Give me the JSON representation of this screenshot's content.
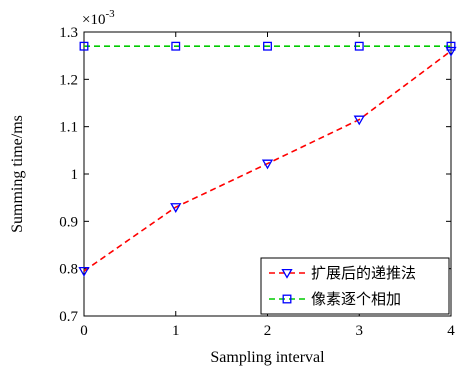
{
  "chart_data": {
    "type": "line",
    "xlabel": "Sampling interval",
    "ylabel": "Summing time/ms",
    "y_multiplier": "×10",
    "y_multiplier_exponent": "-3",
    "xlim": [
      0,
      4
    ],
    "ylim": [
      0.7,
      1.3
    ],
    "x_ticks": [
      0,
      1,
      2,
      3,
      4
    ],
    "y_ticks": [
      0.7,
      0.8,
      0.9,
      1,
      1.1,
      1.2,
      1.3
    ],
    "y_tick_labels": [
      "0.7",
      "0.8",
      "0.9",
      "1",
      "1.1",
      "1.2",
      "1.3"
    ],
    "grid": false,
    "legend_position": "bottom-right",
    "x": [
      0,
      1,
      2,
      3,
      4
    ],
    "series": [
      {
        "name": "扩展后的递推法",
        "values": [
          0.795,
          0.93,
          1.022,
          1.115,
          1.26
        ],
        "line_color": "#ff0000",
        "marker_color": "#0000ff",
        "line_style": "dashed",
        "marker": "triangle-down"
      },
      {
        "name": "像素逐个相加",
        "values": [
          1.27,
          1.27,
          1.27,
          1.27,
          1.27
        ],
        "line_color": "#00cc00",
        "marker_color": "#0000ff",
        "line_style": "dashed",
        "marker": "square"
      }
    ]
  }
}
